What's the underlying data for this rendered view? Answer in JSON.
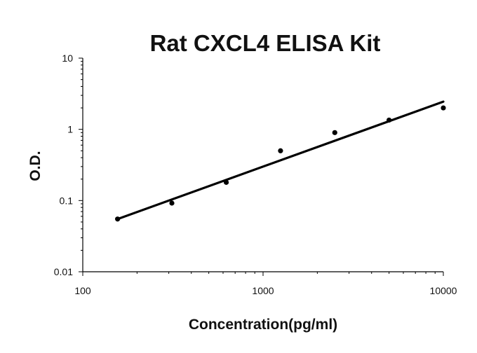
{
  "chart_data": {
    "type": "scatter",
    "title": "Rat CXCL4 ELISA Kit",
    "xlabel": "Concentration(pg/ml)",
    "ylabel": "O.D.",
    "x_scale": "log",
    "y_scale": "log",
    "xlim": [
      100,
      10000
    ],
    "ylim": [
      0.01,
      10
    ],
    "x_ticks": [
      "100",
      "1000",
      "10000"
    ],
    "y_ticks": [
      "0.01",
      "0.1",
      "1",
      "10"
    ],
    "grid": false,
    "legend": "none",
    "series": [
      {
        "points": [
          {
            "x": 156,
            "y": 0.055
          },
          {
            "x": 312,
            "y": 0.092
          },
          {
            "x": 625,
            "y": 0.18
          },
          {
            "x": 1250,
            "y": 0.5
          },
          {
            "x": 2500,
            "y": 0.9
          },
          {
            "x": 5000,
            "y": 1.35
          },
          {
            "x": 10000,
            "y": 2.0
          }
        ],
        "trendline": {
          "type": "power",
          "from": {
            "x": 156,
            "y": 0.055
          },
          "to": {
            "x": 10000,
            "y": 2.45
          }
        }
      }
    ],
    "colors": {
      "points": "#000000",
      "line": "#000000",
      "axis": "#000000"
    }
  }
}
